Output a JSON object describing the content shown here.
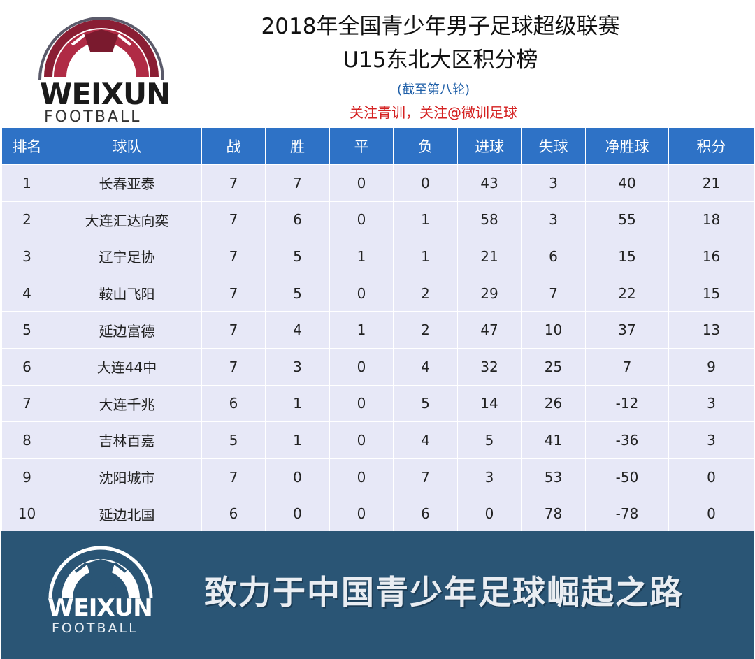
{
  "header": {
    "logo_word": "WEIXUN",
    "logo_sub": "FOOTBALL",
    "title_line1": "2018年全国青少年男子足球超级联赛",
    "title_line2": "U15东北大区积分榜",
    "note_round": "(截至第八轮)",
    "note_follow": "关注青训，关注@微训足球"
  },
  "table": {
    "columns": [
      "排名",
      "球队",
      "战",
      "胜",
      "平",
      "负",
      "进球",
      "失球",
      "净胜球",
      "积分"
    ],
    "rows": [
      [
        "1",
        "长春亚泰",
        "7",
        "7",
        "0",
        "0",
        "43",
        "3",
        "40",
        "21"
      ],
      [
        "2",
        "大连汇达向奕",
        "7",
        "6",
        "0",
        "1",
        "58",
        "3",
        "55",
        "18"
      ],
      [
        "3",
        "辽宁足协",
        "7",
        "5",
        "1",
        "1",
        "21",
        "6",
        "15",
        "16"
      ],
      [
        "4",
        "鞍山飞阳",
        "7",
        "5",
        "0",
        "2",
        "29",
        "7",
        "22",
        "15"
      ],
      [
        "5",
        "延边富德",
        "7",
        "4",
        "1",
        "2",
        "47",
        "10",
        "37",
        "13"
      ],
      [
        "6",
        "大连44中",
        "7",
        "3",
        "0",
        "4",
        "32",
        "25",
        "7",
        "9"
      ],
      [
        "7",
        "大连千兆",
        "6",
        "1",
        "0",
        "5",
        "14",
        "26",
        "-12",
        "3"
      ],
      [
        "8",
        "吉林百嘉",
        "5",
        "1",
        "0",
        "4",
        "5",
        "41",
        "-36",
        "3"
      ],
      [
        "9",
        "沈阳城市",
        "7",
        "0",
        "0",
        "7",
        "3",
        "53",
        "-50",
        "0"
      ],
      [
        "10",
        "延边北国",
        "6",
        "0",
        "0",
        "6",
        "0",
        "78",
        "-78",
        "0"
      ]
    ]
  },
  "footer": {
    "logo_word": "WEIXUN",
    "logo_sub": "FOOTBALL",
    "slogan": "致力于中国青少年足球崛起之路"
  },
  "colors": {
    "header_blue": "#2e72c6",
    "row_bg": "#e7e8f7",
    "footer_bg": "#2a5575",
    "note_blue": "#1f5fa8",
    "note_red": "#d42020",
    "logo_maroon": "#8a1e34"
  }
}
